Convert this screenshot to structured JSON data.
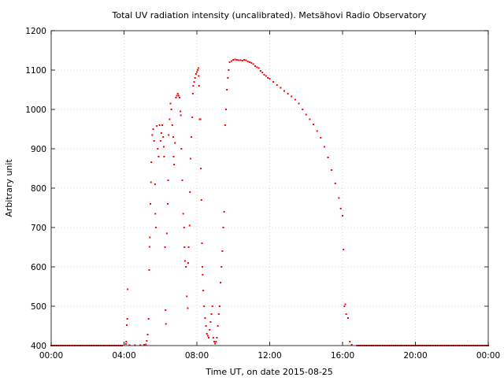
{
  "chart_data": {
    "type": "scatter",
    "title": "Total UV radiation intensity (uncalibrated). Metsähovi Radio Observatory",
    "xlabel": "Time UT, on date 2015-08-25",
    "ylabel": "Arbitrary unit",
    "xlim": [
      0,
      24
    ],
    "ylim": [
      400,
      1200
    ],
    "x_ticks": [
      0,
      4,
      8,
      12,
      16,
      20,
      24
    ],
    "x_tick_labels": [
      "00:00",
      "04:00",
      "08:00",
      "12:00",
      "16:00",
      "20:00",
      "00:00"
    ],
    "y_ticks": [
      400,
      500,
      600,
      700,
      800,
      900,
      1000,
      1100,
      1200
    ],
    "y_tick_labels": [
      "400",
      "500",
      "600",
      "700",
      "800",
      "900",
      "1000",
      "1100",
      "1200"
    ],
    "grid": true,
    "marker_color": "#ff0000",
    "series": [
      {
        "points": [
          [
            0.0,
            400
          ],
          [
            0.5,
            400
          ],
          [
            1.0,
            400
          ],
          [
            1.5,
            400
          ],
          [
            2.0,
            400
          ],
          [
            2.5,
            400
          ],
          [
            3.0,
            400
          ],
          [
            3.5,
            400
          ],
          [
            3.9,
            400
          ],
          [
            4.1,
            404
          ],
          [
            4.12,
            410
          ],
          [
            4.15,
            452
          ],
          [
            4.18,
            468
          ],
          [
            4.2,
            543
          ],
          [
            4.3,
            401
          ],
          [
            4.6,
            401
          ],
          [
            4.9,
            401
          ],
          [
            5.1,
            402
          ],
          [
            5.2,
            403
          ],
          [
            5.25,
            412
          ],
          [
            5.3,
            428
          ],
          [
            5.35,
            468
          ],
          [
            5.38,
            592
          ],
          [
            5.4,
            651
          ],
          [
            5.42,
            675
          ],
          [
            5.45,
            760
          ],
          [
            5.48,
            815
          ],
          [
            5.5,
            866
          ],
          [
            5.55,
            935
          ],
          [
            5.6,
            950
          ],
          [
            5.65,
            920
          ],
          [
            5.7,
            810
          ],
          [
            5.72,
            735
          ],
          [
            5.75,
            700
          ],
          [
            5.8,
            958
          ],
          [
            5.85,
            900
          ],
          [
            5.9,
            880
          ],
          [
            5.95,
            960
          ],
          [
            6.0,
            920
          ],
          [
            6.05,
            940
          ],
          [
            6.1,
            960
          ],
          [
            6.15,
            930
          ],
          [
            6.18,
            905
          ],
          [
            6.2,
            880
          ],
          [
            6.25,
            650
          ],
          [
            6.28,
            490
          ],
          [
            6.3,
            455
          ],
          [
            6.35,
            685
          ],
          [
            6.4,
            760
          ],
          [
            6.42,
            820
          ],
          [
            6.45,
            935
          ],
          [
            6.5,
            975
          ],
          [
            6.55,
            1015
          ],
          [
            6.6,
            1000
          ],
          [
            6.65,
            960
          ],
          [
            6.7,
            930
          ],
          [
            6.72,
            880
          ],
          [
            6.75,
            860
          ],
          [
            6.8,
            915
          ],
          [
            6.85,
            1030
          ],
          [
            6.9,
            1035
          ],
          [
            6.95,
            1040
          ],
          [
            7.0,
            1035
          ],
          [
            7.05,
            1030
          ],
          [
            7.1,
            995
          ],
          [
            7.12,
            985
          ],
          [
            7.15,
            900
          ],
          [
            7.2,
            820
          ],
          [
            7.25,
            735
          ],
          [
            7.3,
            700
          ],
          [
            7.32,
            650
          ],
          [
            7.35,
            615
          ],
          [
            7.4,
            600
          ],
          [
            7.45,
            525
          ],
          [
            7.5,
            495
          ],
          [
            7.52,
            610
          ],
          [
            7.55,
            650
          ],
          [
            7.6,
            705
          ],
          [
            7.62,
            790
          ],
          [
            7.65,
            875
          ],
          [
            7.7,
            930
          ],
          [
            7.75,
            980
          ],
          [
            7.78,
            1040
          ],
          [
            7.8,
            1060
          ],
          [
            7.85,
            1070
          ],
          [
            7.9,
            1080
          ],
          [
            7.95,
            1090
          ],
          [
            8.0,
            1095
          ],
          [
            8.05,
            1100
          ],
          [
            8.08,
            1105
          ],
          [
            8.1,
            1085
          ],
          [
            8.12,
            1060
          ],
          [
            8.15,
            975
          ],
          [
            8.2,
            975
          ],
          [
            8.22,
            850
          ],
          [
            8.25,
            770
          ],
          [
            8.28,
            660
          ],
          [
            8.3,
            600
          ],
          [
            8.32,
            580
          ],
          [
            8.35,
            540
          ],
          [
            8.4,
            500
          ],
          [
            8.45,
            470
          ],
          [
            8.5,
            450
          ],
          [
            8.55,
            430
          ],
          [
            8.6,
            425
          ],
          [
            8.65,
            420
          ],
          [
            8.7,
            440
          ],
          [
            8.75,
            460
          ],
          [
            8.8,
            480
          ],
          [
            8.85,
            500
          ],
          [
            8.9,
            420
          ],
          [
            8.95,
            410
          ],
          [
            9.0,
            405
          ],
          [
            9.05,
            410
          ],
          [
            9.1,
            420
          ],
          [
            9.15,
            450
          ],
          [
            9.2,
            480
          ],
          [
            9.25,
            500
          ],
          [
            9.3,
            560
          ],
          [
            9.35,
            600
          ],
          [
            9.4,
            640
          ],
          [
            9.45,
            700
          ],
          [
            9.5,
            740
          ],
          [
            9.55,
            960
          ],
          [
            9.6,
            1000
          ],
          [
            9.65,
            1050
          ],
          [
            9.7,
            1080
          ],
          [
            9.75,
            1100
          ],
          [
            9.8,
            1120
          ],
          [
            9.9,
            1123
          ],
          [
            10.0,
            1126
          ],
          [
            10.1,
            1127
          ],
          [
            10.2,
            1126
          ],
          [
            10.3,
            1125
          ],
          [
            10.4,
            1125
          ],
          [
            10.5,
            1124
          ],
          [
            10.6,
            1126
          ],
          [
            10.7,
            1125
          ],
          [
            10.8,
            1122
          ],
          [
            10.9,
            1120
          ],
          [
            11.0,
            1118
          ],
          [
            11.1,
            1115
          ],
          [
            11.2,
            1110
          ],
          [
            11.3,
            1107
          ],
          [
            11.4,
            1105
          ],
          [
            11.5,
            1098
          ],
          [
            11.6,
            1094
          ],
          [
            11.7,
            1088
          ],
          [
            11.8,
            1085
          ],
          [
            11.9,
            1080
          ],
          [
            12.0,
            1078
          ],
          [
            12.2,
            1070
          ],
          [
            12.4,
            1062
          ],
          [
            12.6,
            1055
          ],
          [
            12.8,
            1047
          ],
          [
            13.0,
            1040
          ],
          [
            13.2,
            1033
          ],
          [
            13.4,
            1025
          ],
          [
            13.6,
            1015
          ],
          [
            13.8,
            1000
          ],
          [
            14.0,
            987
          ],
          [
            14.2,
            975
          ],
          [
            14.4,
            962
          ],
          [
            14.6,
            945
          ],
          [
            14.8,
            928
          ],
          [
            15.0,
            905
          ],
          [
            15.2,
            878
          ],
          [
            15.4,
            846
          ],
          [
            15.6,
            812
          ],
          [
            15.8,
            775
          ],
          [
            15.9,
            748
          ],
          [
            16.0,
            730
          ],
          [
            16.05,
            644
          ],
          [
            16.1,
            500
          ],
          [
            16.15,
            505
          ],
          [
            16.2,
            480
          ],
          [
            16.3,
            470
          ],
          [
            16.4,
            410
          ],
          [
            16.5,
            402
          ],
          [
            16.8,
            400
          ],
          [
            17.2,
            400
          ],
          [
            17.7,
            400
          ],
          [
            18.2,
            400
          ],
          [
            18.7,
            400
          ],
          [
            19.2,
            400
          ],
          [
            19.7,
            400
          ],
          [
            20.2,
            400
          ],
          [
            20.7,
            400
          ],
          [
            21.2,
            400
          ],
          [
            21.7,
            400
          ],
          [
            22.2,
            400
          ],
          [
            22.7,
            400
          ],
          [
            23.2,
            400
          ],
          [
            23.7,
            400
          ],
          [
            24.0,
            400
          ]
        ]
      }
    ]
  }
}
